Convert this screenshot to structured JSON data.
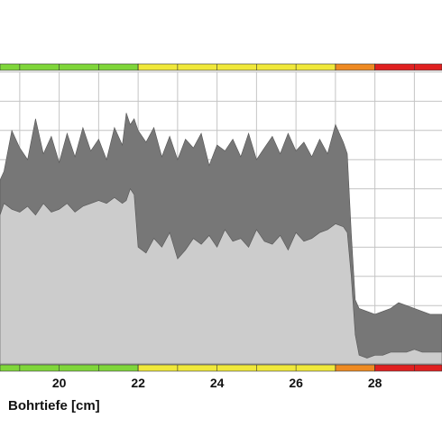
{
  "chart_data": {
    "type": "area",
    "xlabel": "Bohrtiefe [cm]",
    "xlim": [
      18.5,
      29.7
    ],
    "ylim": [
      0,
      1
    ],
    "x_ticks": [
      20,
      22,
      24,
      26,
      28
    ],
    "x_tick_labels": [
      "20",
      "22",
      "24",
      "26",
      "28"
    ],
    "grid": true,
    "zones": [
      {
        "from": 18.5,
        "to": 22.0,
        "color": "#7fd63a"
      },
      {
        "from": 22.0,
        "to": 27.0,
        "color": "#f0e83a"
      },
      {
        "from": 27.0,
        "to": 28.0,
        "color": "#ee8a22"
      },
      {
        "from": 28.0,
        "to": 29.7,
        "color": "#e02020"
      }
    ],
    "series": [
      {
        "color": "#cccccc",
        "x": [
          18.5,
          18.6,
          18.8,
          19.0,
          19.2,
          19.4,
          19.6,
          19.8,
          20.0,
          20.2,
          20.4,
          20.6,
          20.8,
          21.0,
          21.2,
          21.4,
          21.6,
          21.7,
          21.8,
          21.9,
          22.0,
          22.2,
          22.4,
          22.6,
          22.8,
          23.0,
          23.2,
          23.4,
          23.6,
          23.8,
          24.0,
          24.2,
          24.4,
          24.6,
          24.8,
          25.0,
          25.2,
          25.4,
          25.6,
          25.8,
          26.0,
          26.2,
          26.4,
          26.6,
          26.8,
          27.0,
          27.2,
          27.3,
          27.4,
          27.5,
          27.6,
          27.8,
          28.0,
          28.2,
          28.4,
          28.6,
          28.8,
          29.0,
          29.2,
          29.4,
          29.7
        ],
        "values": [
          0.51,
          0.55,
          0.53,
          0.52,
          0.54,
          0.51,
          0.55,
          0.52,
          0.53,
          0.55,
          0.52,
          0.54,
          0.55,
          0.56,
          0.55,
          0.57,
          0.55,
          0.56,
          0.6,
          0.58,
          0.4,
          0.38,
          0.43,
          0.4,
          0.45,
          0.36,
          0.39,
          0.43,
          0.41,
          0.44,
          0.4,
          0.46,
          0.42,
          0.43,
          0.4,
          0.46,
          0.42,
          0.41,
          0.44,
          0.39,
          0.45,
          0.42,
          0.43,
          0.45,
          0.46,
          0.48,
          0.47,
          0.45,
          0.3,
          0.1,
          0.03,
          0.02,
          0.03,
          0.03,
          0.04,
          0.04,
          0.04,
          0.05,
          0.04,
          0.04,
          0.04
        ]
      },
      {
        "color": "#777777",
        "x": [
          18.5,
          18.6,
          18.8,
          19.0,
          19.2,
          19.4,
          19.6,
          19.8,
          20.0,
          20.2,
          20.4,
          20.6,
          20.8,
          21.0,
          21.2,
          21.4,
          21.6,
          21.7,
          21.8,
          21.9,
          22.0,
          22.2,
          22.4,
          22.6,
          22.8,
          23.0,
          23.2,
          23.4,
          23.6,
          23.8,
          24.0,
          24.2,
          24.4,
          24.6,
          24.8,
          25.0,
          25.2,
          25.4,
          25.6,
          25.8,
          26.0,
          26.2,
          26.4,
          26.6,
          26.8,
          27.0,
          27.2,
          27.3,
          27.4,
          27.5,
          27.6,
          27.8,
          28.0,
          28.2,
          28.4,
          28.6,
          28.8,
          29.0,
          29.2,
          29.4,
          29.7
        ],
        "values": [
          0.63,
          0.66,
          0.8,
          0.74,
          0.7,
          0.84,
          0.72,
          0.78,
          0.69,
          0.79,
          0.71,
          0.81,
          0.73,
          0.77,
          0.7,
          0.81,
          0.75,
          0.86,
          0.82,
          0.84,
          0.8,
          0.76,
          0.81,
          0.71,
          0.78,
          0.7,
          0.77,
          0.74,
          0.79,
          0.68,
          0.75,
          0.73,
          0.77,
          0.71,
          0.79,
          0.7,
          0.74,
          0.78,
          0.72,
          0.79,
          0.73,
          0.76,
          0.71,
          0.77,
          0.72,
          0.82,
          0.76,
          0.72,
          0.45,
          0.22,
          0.19,
          0.18,
          0.17,
          0.18,
          0.19,
          0.21,
          0.2,
          0.19,
          0.18,
          0.17,
          0.17
        ]
      }
    ]
  }
}
